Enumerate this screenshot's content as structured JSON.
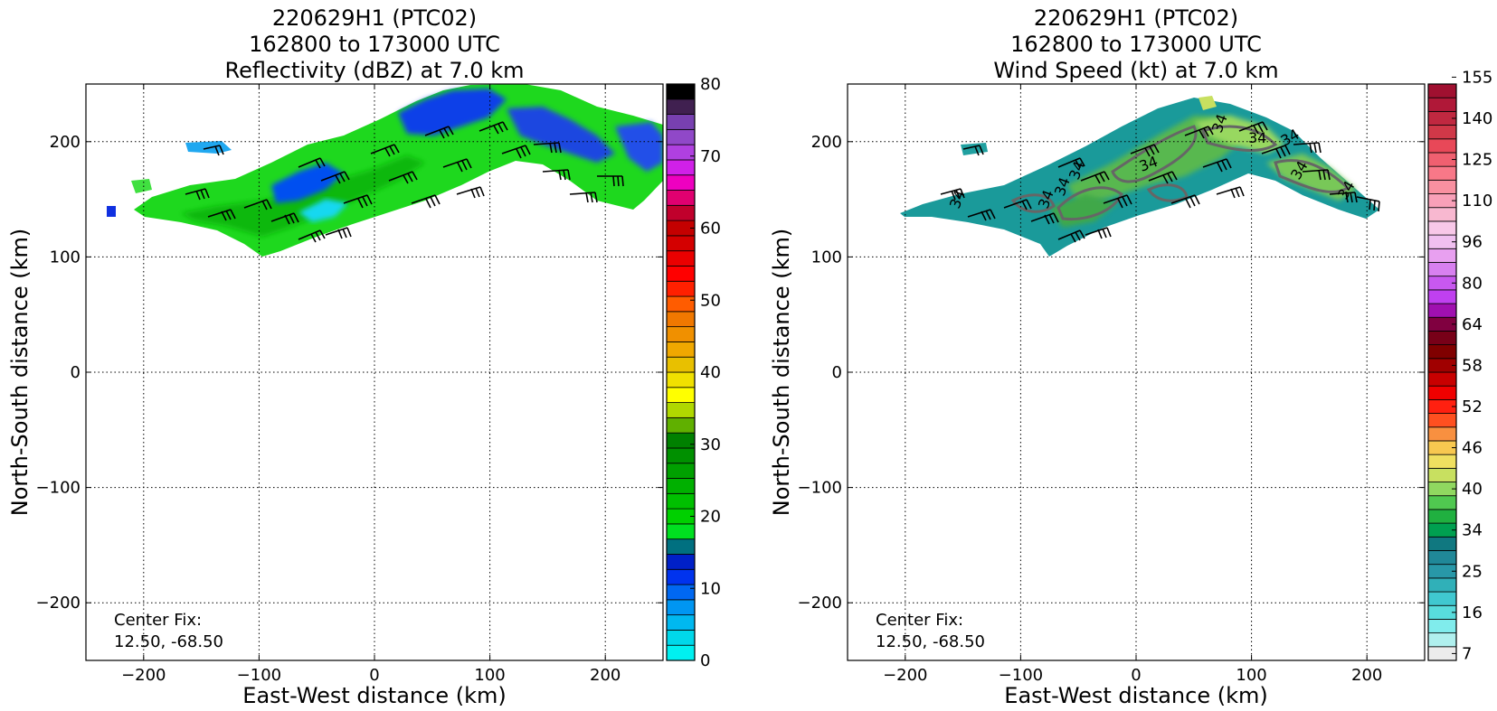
{
  "chart_data": [
    {
      "type": "heatmap",
      "title": [
        "220629H1 (PTC02)",
        "162800 to 173000 UTC",
        "Reflectivity (dBZ) at 7.0 km"
      ],
      "xlabel": "East-West distance (km)",
      "ylabel": "North-South distance (km)",
      "xlim": [
        -250,
        250
      ],
      "ylim": [
        -250,
        250
      ],
      "xticks": [
        -200,
        -100,
        0,
        100,
        200
      ],
      "yticks": [
        -200,
        -100,
        0,
        100,
        200
      ],
      "xtick_labels": [
        "−200",
        "−100",
        "0",
        "100",
        "200"
      ],
      "ytick_labels": [
        "−200",
        "−100",
        "0",
        "100",
        "200"
      ],
      "grid": true,
      "annotation": [
        "Center Fix:",
        "12.50, -68.50"
      ],
      "colorbar": {
        "vmin": 0,
        "vmax": 80,
        "colors": [
          "#00f0f0",
          "#00d8ea",
          "#00b8f0",
          "#0096f2",
          "#0068f2",
          "#0033ee",
          "#0020c8",
          "#007080",
          "#00e020",
          "#00d000",
          "#00c000",
          "#00b000",
          "#00a000",
          "#009000",
          "#008000",
          "#60b000",
          "#b0d800",
          "#ffff00",
          "#f0e000",
          "#e8c000",
          "#f0a800",
          "#f09000",
          "#f07800",
          "#ff5c00",
          "#ff2000",
          "#ff0000",
          "#ea0000",
          "#d40000",
          "#c40000",
          "#c0002c",
          "#e00070",
          "#ee00c0",
          "#d020e8",
          "#b040e0",
          "#9048c8",
          "#7840b0",
          "#402050",
          "#000000"
        ],
        "ticks": [
          0,
          10,
          20,
          30,
          40,
          50,
          60,
          70,
          80
        ],
        "tick_labels": [
          "0",
          "10",
          "20",
          "30",
          "40",
          "50",
          "60",
          "70",
          "80"
        ]
      }
    },
    {
      "type": "heatmap",
      "title": [
        "220629H1 (PTC02)",
        "162800 to 173000 UTC",
        "Wind Speed (kt) at 7.0 km"
      ],
      "xlabel": "East-West distance (km)",
      "ylabel": "North-South distance (km)",
      "xlim": [
        -250,
        250
      ],
      "ylim": [
        -250,
        250
      ],
      "xticks": [
        -200,
        -100,
        0,
        100,
        200
      ],
      "yticks": [
        -200,
        -100,
        0,
        100,
        200
      ],
      "xtick_labels": [
        "−200",
        "−100",
        "0",
        "100",
        "200"
      ],
      "ytick_labels": [
        "−200",
        "−100",
        "0",
        "100",
        "200"
      ],
      "grid": true,
      "annotation": [
        "Center Fix:",
        "12.50, -68.50"
      ],
      "contour_labels": [
        "34",
        "34",
        "34",
        "34",
        "34",
        "34",
        "34",
        "34",
        "34",
        "34"
      ],
      "colorbar": {
        "colors": [
          "#ececec",
          "#b0f0ee",
          "#80ecec",
          "#58dcdc",
          "#40c8d0",
          "#30b0b8",
          "#2898a8",
          "#208898",
          "#107880",
          "#00a050",
          "#20b040",
          "#50c850",
          "#90d860",
          "#c8e060",
          "#f0e060",
          "#f8c850",
          "#f89040",
          "#ff5020",
          "#ff2010",
          "#f00000",
          "#c80000",
          "#a00000",
          "#800000",
          "#780018",
          "#800040",
          "#a010b0",
          "#c040f0",
          "#c858f0",
          "#d880f0",
          "#e8a0f0",
          "#f0c0f0",
          "#f8c8e8",
          "#f8b8d0",
          "#f8a0b8",
          "#f890a0",
          "#f87888",
          "#f06070",
          "#e84858",
          "#d03848",
          "#c02840",
          "#b01838",
          "#a01030"
        ],
        "ticks": [
          7,
          16,
          25,
          34,
          40,
          46,
          52,
          58,
          64,
          80,
          96,
          110,
          125,
          140,
          155
        ],
        "tick_labels": [
          "7",
          "16",
          "25",
          "34",
          "40",
          "46",
          "52",
          "58",
          "64",
          "80",
          "96",
          "110",
          "125",
          "140",
          "155"
        ]
      }
    }
  ]
}
